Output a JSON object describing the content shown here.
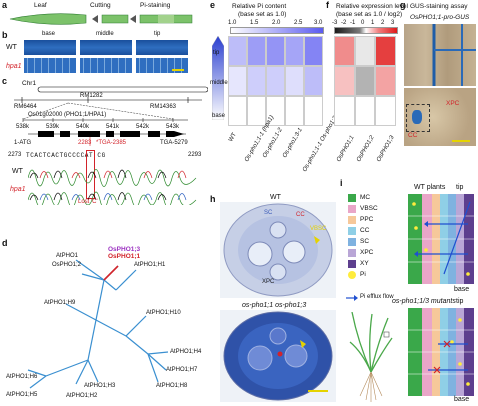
{
  "panels": {
    "a": "a",
    "b": "b",
    "c": "c",
    "d": "d",
    "e": "e",
    "f": "f",
    "g": "g",
    "h": "h",
    "i": "i"
  },
  "a": {
    "leaf": "Leaf",
    "cutting": "Cutting",
    "staining": "Pi-staining",
    "base": "base",
    "middle": "middle",
    "tip": "tip"
  },
  "b": {
    "wt": "WT",
    "mutant": "hpa1"
  },
  "c": {
    "chr": "Chr1",
    "markers": [
      "RM6464",
      "RM1282",
      "RM14363"
    ],
    "gene": "Os01g02000 (PHO1;1/HPA1)",
    "scale": [
      "538k",
      "539k",
      "540k",
      "541k",
      "542k",
      "543k"
    ],
    "atg": "1-ATG",
    "tga": "TGA-5279",
    "pos2283": "2283",
    "tga2385": "*TGA-2385",
    "seq_left": "2273",
    "seq_right": "2293",
    "sequence": "TCACTCACTGCCCCAT CG",
    "wt": "WT",
    "mutant": "hpa1",
    "lost": "Lost 'C'"
  },
  "d": {
    "labels": [
      "AtPHO1",
      "OsPHO1;2",
      "OsPHO1;1",
      "OsPHO1;3",
      "AtPHO1;H1",
      "AtPHO1;H9",
      "AtPHO1;H10",
      "AtPHO1;H4",
      "AtPHO1;H7",
      "AtPHO1;H8",
      "AtPHO1;H3",
      "AtPHO1;H2",
      "AtPHO1;H6",
      "AtPHO1;H5"
    ]
  },
  "e": {
    "title": "Relative Pi content",
    "subtitle": "(base set as 1.0)",
    "scale_ticks": [
      "1.0",
      "1.5",
      "2.0",
      "2.5",
      "3.0"
    ],
    "rows": [
      "tip",
      "middle",
      "base"
    ],
    "cols": [
      "WT",
      "Os-pho1;1-1 (hpa1)",
      "Os-pho1;1-2",
      "Os-pho1;3-1",
      "Os-pho1;1-1 Os-pho1;3-1"
    ],
    "values": [
      [
        1.8,
        2.2,
        2.3,
        2.1,
        2.5
      ],
      [
        1.3,
        1.6,
        1.6,
        1.4,
        1.8
      ],
      [
        1.0,
        1.0,
        1.0,
        1.0,
        1.0
      ]
    ]
  },
  "f": {
    "title": "Relative expression level",
    "subtitle": "(base set as 1.0 / log2)",
    "scale_ticks": [
      "-3",
      "-2",
      "-1",
      "0",
      "1",
      "2",
      "3"
    ],
    "cols": [
      "OsPHO1;1",
      "OsPHO1;2",
      "OsPHO1;3"
    ],
    "values": [
      [
        1.5,
        -0.3,
        2.5
      ],
      [
        0.8,
        -1.0,
        1.2
      ],
      [
        0,
        0,
        0
      ]
    ]
  },
  "g": {
    "title": "GUS-staining assay",
    "construct": "OsPHO1;1-pro-GUS",
    "xpc": "XPC",
    "cc": "CC"
  },
  "h": {
    "wt": "WT",
    "mutant": "os-pho1;1 os-pho1;3",
    "labels": [
      "SC",
      "CC",
      "VBSC",
      "XPC"
    ]
  },
  "i": {
    "legend": [
      {
        "key": "MC",
        "color": "#3aa84a"
      },
      {
        "key": "VBSC",
        "color": "#e9a6c8"
      },
      {
        "key": "PPC",
        "color": "#f6c89a"
      },
      {
        "key": "CC",
        "color": "#8fcfe6"
      },
      {
        "key": "SC",
        "color": "#7fb2e0"
      },
      {
        "key": "XPC",
        "color": "#b9a6d6"
      },
      {
        "key": "XY",
        "color": "#5d3f8e"
      },
      {
        "key": "Pi",
        "color": "#ffec3c"
      }
    ],
    "efflux": "Pi efflux flow",
    "wt_title": "WT plants",
    "mut_title": "os-pho1;1/3 mutants",
    "tip": "tip",
    "base": "base"
  }
}
